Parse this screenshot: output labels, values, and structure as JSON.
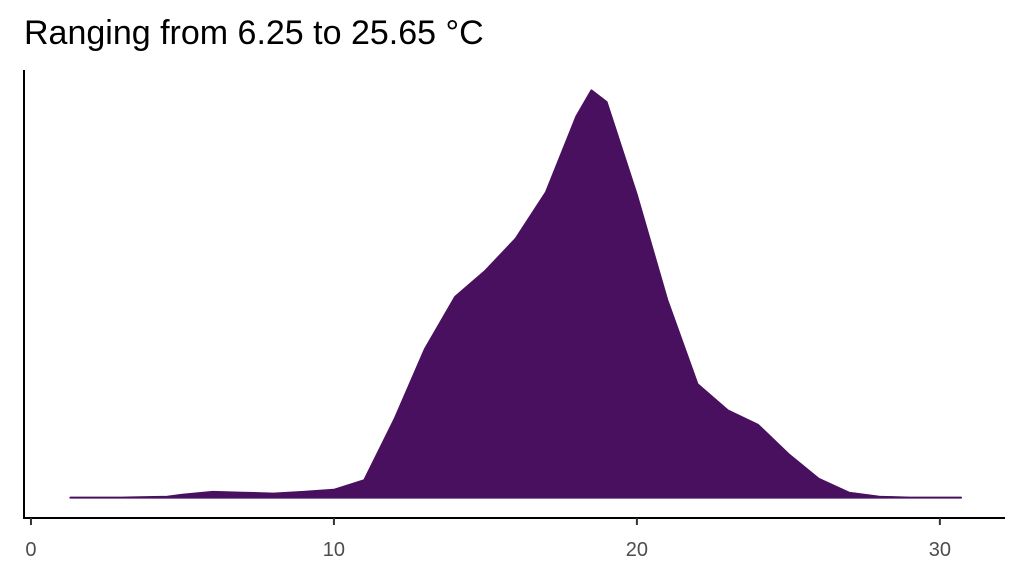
{
  "chart_data": {
    "type": "density",
    "title": "Ranging from 6.25 to 25.65 °C",
    "x": [
      1.3,
      3,
      4.5,
      5,
      6,
      7,
      8,
      9,
      10,
      11,
      12,
      13,
      14,
      15,
      16,
      17,
      18,
      18.5,
      19,
      20,
      21,
      22,
      23,
      24,
      25,
      26,
      27,
      28,
      29,
      30.7
    ],
    "values": [
      0,
      0,
      0.0003,
      0.001,
      0.002,
      0.0017,
      0.0014,
      0.002,
      0.0027,
      0.006,
      0.027,
      0.051,
      0.069,
      0.078,
      0.089,
      0.105,
      0.131,
      0.14,
      0.136,
      0.104,
      0.068,
      0.039,
      0.03,
      0.025,
      0.015,
      0.0065,
      0.0017,
      0.0003,
      0,
      0
    ],
    "color": "#48105e",
    "xlim": [
      -0.23,
      32.15
    ],
    "xticks": [
      0,
      10,
      20,
      30
    ],
    "ylim": [
      -0.007,
      0.147
    ]
  }
}
